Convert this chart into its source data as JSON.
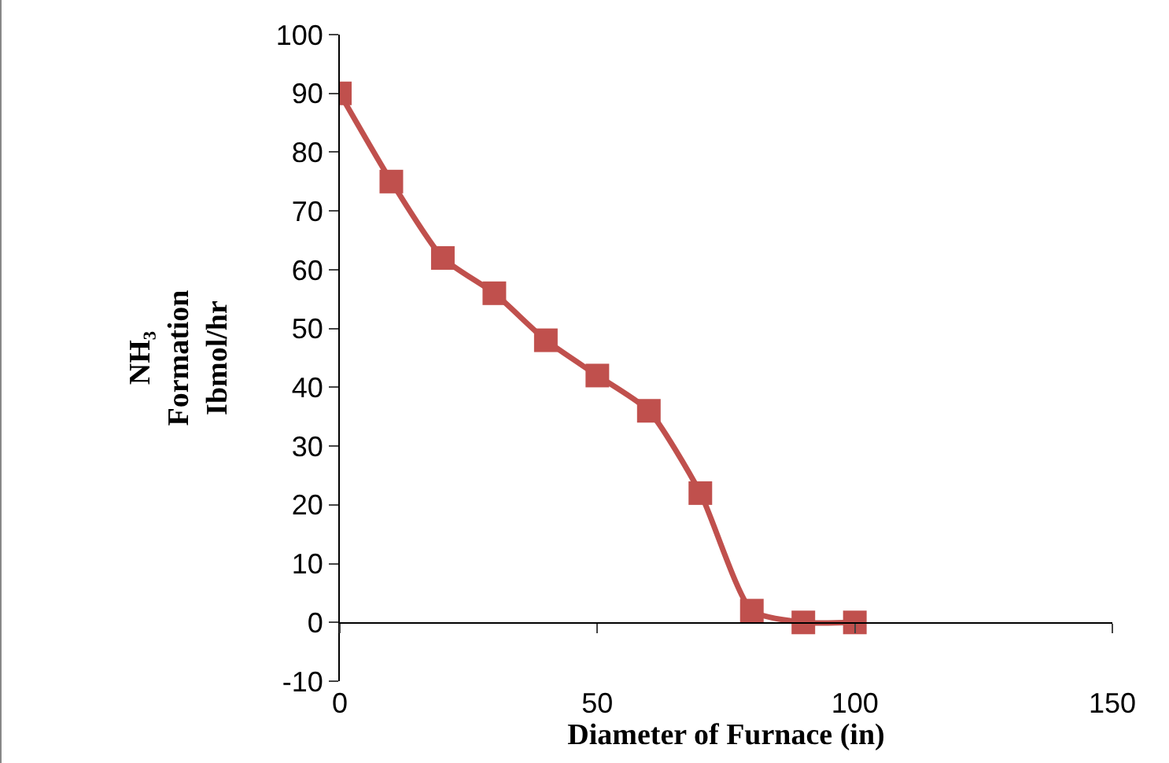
{
  "chart_data": {
    "type": "line",
    "xlabel": "Diameter of Furnace (in)",
    "ylabel": "NH₃ Formation Ibmol/hr",
    "x": [
      0,
      10,
      20,
      30,
      40,
      50,
      60,
      70,
      80,
      90,
      100
    ],
    "series": [
      {
        "color": "#c0504d",
        "values": [
          90,
          75,
          62,
          56,
          48,
          42,
          36,
          22,
          2,
          0,
          0
        ]
      }
    ],
    "xlim": [
      0,
      150
    ],
    "xticks": [
      0,
      50,
      100,
      150
    ],
    "ylim": [
      -10,
      100
    ],
    "yticks": [
      -10,
      0,
      10,
      20,
      30,
      40,
      50,
      60,
      70,
      80,
      90,
      100
    ],
    "grid": false,
    "marker": "square",
    "line_style": "solid"
  }
}
